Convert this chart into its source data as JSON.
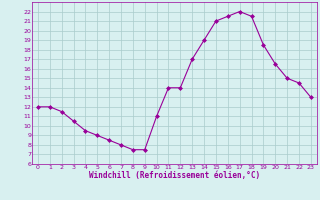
{
  "x": [
    0,
    1,
    2,
    3,
    4,
    5,
    6,
    7,
    8,
    9,
    10,
    11,
    12,
    13,
    14,
    15,
    16,
    17,
    18,
    19,
    20,
    21,
    22,
    23
  ],
  "y": [
    12,
    12,
    11.5,
    10.5,
    9.5,
    9,
    8.5,
    8,
    7.5,
    7.5,
    11,
    14,
    14,
    17,
    19,
    21,
    21.5,
    22,
    21.5,
    18.5,
    16.5,
    15,
    14.5,
    13
  ],
  "line_color": "#990099",
  "marker": "D",
  "marker_size": 2.0,
  "bg_color": "#d8f0f0",
  "grid_color": "#aacccc",
  "xlabel": "Windchill (Refroidissement éolien,°C)",
  "xlabel_color": "#990099",
  "tick_color": "#990099",
  "ylim": [
    6,
    23
  ],
  "xlim": [
    -0.5,
    23.5
  ],
  "yticks": [
    6,
    7,
    8,
    9,
    10,
    11,
    12,
    13,
    14,
    15,
    16,
    17,
    18,
    19,
    20,
    21,
    22
  ],
  "xticks": [
    0,
    1,
    2,
    3,
    4,
    5,
    6,
    7,
    8,
    9,
    10,
    11,
    12,
    13,
    14,
    15,
    16,
    17,
    18,
    19,
    20,
    21,
    22,
    23
  ]
}
